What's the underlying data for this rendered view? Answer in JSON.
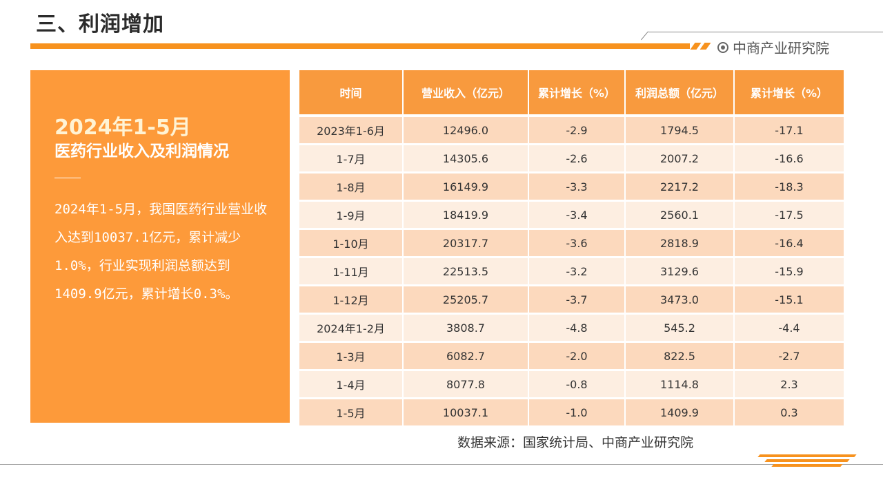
{
  "page_title": "三、利润增加",
  "brand": "中商产业研究院",
  "colors": {
    "accent": "#f7921e",
    "panel": "#fd9a3a",
    "row_dark": "#fcd9bd",
    "row_light": "#fdeee1"
  },
  "panel": {
    "title_line1": "2024年1-5月",
    "title_line2": "医药行业收入及利润情况",
    "body": "2024年1-5月，我国医药行业营业收入达到10037.1亿元，累计减少1.0%，行业实现利润总额达到1409.9亿元，累计增长0.3%。"
  },
  "table": {
    "headers": [
      "时间",
      "营业收入（亿元）",
      "累计增长（%）",
      "利润总额（亿元）",
      "累计增长（%）"
    ],
    "rows": [
      [
        "2023年1-6月",
        "12496.0",
        "-2.9",
        "1794.5",
        "-17.1"
      ],
      [
        "1-7月",
        "14305.6",
        "-2.6",
        "2007.2",
        "-16.6"
      ],
      [
        "1-8月",
        "16149.9",
        "-3.3",
        "2217.2",
        "-18.3"
      ],
      [
        "1-9月",
        "18419.9",
        "-3.4",
        "2560.1",
        "-17.5"
      ],
      [
        "1-10月",
        "20317.7",
        "-3.6",
        "2818.9",
        "-16.4"
      ],
      [
        "1-11月",
        "22513.5",
        "-3.2",
        "3129.6",
        "-15.9"
      ],
      [
        "1-12月",
        "25205.7",
        "-3.7",
        "3473.0",
        "-15.1"
      ],
      [
        "2024年1-2月",
        "3808.7",
        "-4.8",
        "545.2",
        "-4.4"
      ],
      [
        "1-3月",
        "6082.7",
        "-2.0",
        "822.5",
        "-2.7"
      ],
      [
        "1-4月",
        "8077.8",
        "-0.8",
        "1114.8",
        "2.3"
      ],
      [
        "1-5月",
        "10037.1",
        "-1.0",
        "1409.9",
        "0.3"
      ]
    ]
  },
  "source": "数据来源：国家统计局、中商产业研究院"
}
